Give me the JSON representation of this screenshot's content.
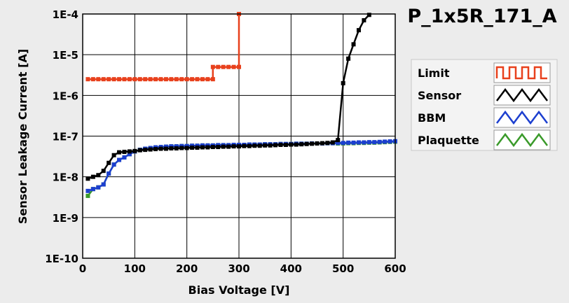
{
  "chart_data": {
    "type": "line",
    "title": "P_1x5R_171_A",
    "xlabel": "Bias Voltage [V]",
    "ylabel": "Sensor Leakage Current [A]",
    "xlim": [
      0,
      600
    ],
    "ylim": [
      1e-10,
      0.0001
    ],
    "yscale": "log",
    "grid": true,
    "legend_position": "right",
    "x_ticks": [
      {
        "value": 0,
        "label": "0"
      },
      {
        "value": 100,
        "label": "100"
      },
      {
        "value": 200,
        "label": "200"
      },
      {
        "value": 300,
        "label": "300"
      },
      {
        "value": 400,
        "label": "400"
      },
      {
        "value": 500,
        "label": "500"
      },
      {
        "value": 600,
        "label": "600"
      }
    ],
    "y_ticks": [
      {
        "value": 1e-10,
        "label": "1E-10"
      },
      {
        "value": 1e-09,
        "label": "1E-9"
      },
      {
        "value": 1e-08,
        "label": "1E-8"
      },
      {
        "value": 1e-07,
        "label": "1E-7"
      },
      {
        "value": 1e-06,
        "label": "1E-6"
      },
      {
        "value": 1e-05,
        "label": "1E-5"
      },
      {
        "value": 0.0001,
        "label": "1E-4"
      }
    ],
    "series": [
      {
        "name": "Limit",
        "color": "#e8401c",
        "x": [
          10,
          20,
          30,
          40,
          50,
          60,
          70,
          80,
          90,
          100,
          110,
          120,
          130,
          140,
          150,
          160,
          170,
          180,
          190,
          200,
          210,
          220,
          230,
          240,
          250,
          250,
          260,
          270,
          280,
          290,
          300,
          300
        ],
        "y": [
          2.5e-06,
          2.5e-06,
          2.5e-06,
          2.5e-06,
          2.5e-06,
          2.5e-06,
          2.5e-06,
          2.5e-06,
          2.5e-06,
          2.5e-06,
          2.5e-06,
          2.5e-06,
          2.5e-06,
          2.5e-06,
          2.5e-06,
          2.5e-06,
          2.5e-06,
          2.5e-06,
          2.5e-06,
          2.5e-06,
          2.5e-06,
          2.5e-06,
          2.5e-06,
          2.5e-06,
          2.5e-06,
          5e-06,
          5e-06,
          5e-06,
          5e-06,
          5e-06,
          5e-06,
          0.0001
        ]
      },
      {
        "name": "Sensor",
        "color": "#000000",
        "x": [
          10,
          20,
          30,
          40,
          50,
          60,
          70,
          80,
          90,
          100,
          110,
          120,
          130,
          140,
          150,
          160,
          170,
          180,
          190,
          200,
          210,
          220,
          230,
          240,
          250,
          260,
          270,
          280,
          290,
          300,
          310,
          320,
          330,
          340,
          350,
          360,
          370,
          380,
          390,
          400,
          410,
          420,
          430,
          440,
          450,
          460,
          470,
          480,
          490,
          500,
          510,
          520,
          530,
          540,
          550
        ],
        "y": [
          9e-09,
          1e-08,
          1.1e-08,
          1.4e-08,
          2.2e-08,
          3.4e-08,
          4e-08,
          4.1e-08,
          4.2e-08,
          4.3e-08,
          4.5e-08,
          4.6e-08,
          4.7e-08,
          4.8e-08,
          4.9e-08,
          4.9e-08,
          5e-08,
          5e-08,
          5.1e-08,
          5.1e-08,
          5.2e-08,
          5.2e-08,
          5.3e-08,
          5.3e-08,
          5.4e-08,
          5.4e-08,
          5.5e-08,
          5.5e-08,
          5.6e-08,
          5.6e-08,
          5.7e-08,
          5.7e-08,
          5.8e-08,
          5.8e-08,
          5.9e-08,
          5.9e-08,
          6e-08,
          6.1e-08,
          6.1e-08,
          6.2e-08,
          6.2e-08,
          6.3e-08,
          6.4e-08,
          6.5e-08,
          6.6e-08,
          6.7e-08,
          6.8e-08,
          7e-08,
          8e-08,
          2e-06,
          8e-06,
          1.8e-05,
          4e-05,
          7e-05,
          9.5e-05
        ]
      },
      {
        "name": "BBM",
        "color": "#1c3fcf",
        "x": [
          10,
          20,
          30,
          40,
          50,
          60,
          70,
          80,
          90,
          100,
          110,
          120,
          130,
          140,
          150,
          160,
          170,
          180,
          190,
          200,
          210,
          220,
          230,
          240,
          250,
          260,
          270,
          280,
          290,
          300,
          310,
          320,
          330,
          340,
          350,
          360,
          370,
          380,
          390,
          400,
          410,
          420,
          430,
          440,
          450,
          460,
          470,
          480,
          490,
          500,
          510,
          520,
          530,
          540,
          550,
          560,
          570,
          580,
          590,
          600
        ],
        "y": [
          4.5e-09,
          5e-09,
          5.5e-09,
          6.5e-09,
          1.2e-08,
          2e-08,
          2.6e-08,
          3e-08,
          3.6e-08,
          4.2e-08,
          4.6e-08,
          4.9e-08,
          5.1e-08,
          5.3e-08,
          5.4e-08,
          5.5e-08,
          5.6e-08,
          5.6e-08,
          5.7e-08,
          5.7e-08,
          5.8e-08,
          5.8e-08,
          5.9e-08,
          5.9e-08,
          5.9e-08,
          6e-08,
          6e-08,
          6e-08,
          6.1e-08,
          6.1e-08,
          6.1e-08,
          6.2e-08,
          6.2e-08,
          6.2e-08,
          6.3e-08,
          6.3e-08,
          6.3e-08,
          6.4e-08,
          6.4e-08,
          6.4e-08,
          6.5e-08,
          6.5e-08,
          6.5e-08,
          6.6e-08,
          6.6e-08,
          6.6e-08,
          6.7e-08,
          6.7e-08,
          6.8e-08,
          6.8e-08,
          6.9e-08,
          6.9e-08,
          7e-08,
          7e-08,
          7.1e-08,
          7.1e-08,
          7.2e-08,
          7.3e-08,
          7.4e-08,
          7.5e-08
        ]
      },
      {
        "name": "Plaquette",
        "color": "#3a9a2a",
        "x": [
          10,
          20,
          30,
          40,
          50,
          60,
          70,
          80,
          90,
          100,
          110,
          120,
          130,
          140,
          150,
          160,
          170,
          180,
          190,
          200,
          210,
          220,
          230,
          240,
          250,
          260,
          270,
          280,
          290,
          300,
          310,
          320,
          330,
          340,
          350,
          360,
          370,
          380,
          390,
          400,
          410,
          420,
          430,
          440,
          450,
          460,
          470,
          480,
          490,
          500,
          510,
          520,
          530,
          540,
          550,
          560,
          570,
          580,
          590,
          600
        ],
        "y": [
          3.4e-09,
          5e-09,
          5.5e-09,
          6.5e-09,
          1.2e-08,
          2e-08,
          2.6e-08,
          3e-08,
          3.6e-08,
          4.2e-08,
          4.6e-08,
          4.9e-08,
          5.1e-08,
          5.3e-08,
          5.4e-08,
          5.5e-08,
          5.6e-08,
          5.6e-08,
          5.7e-08,
          5.7e-08,
          5.8e-08,
          5.8e-08,
          5.9e-08,
          5.9e-08,
          5.9e-08,
          6e-08,
          6e-08,
          6e-08,
          6.1e-08,
          6.1e-08,
          6.1e-08,
          6.2e-08,
          6.2e-08,
          6.2e-08,
          6.3e-08,
          6.3e-08,
          6.3e-08,
          6.4e-08,
          6.4e-08,
          6.4e-08,
          6.5e-08,
          6.5e-08,
          6.5e-08,
          6.6e-08,
          6.6e-08,
          6.6e-08,
          6.7e-08,
          6.7e-08,
          6.6e-08,
          6.6e-08,
          6.7e-08,
          6.7e-08,
          6.8e-08,
          6.8e-08,
          6.9e-08,
          6.9e-08,
          7e-08,
          7.1e-08,
          7.2e-08,
          7.3e-08
        ]
      }
    ]
  }
}
